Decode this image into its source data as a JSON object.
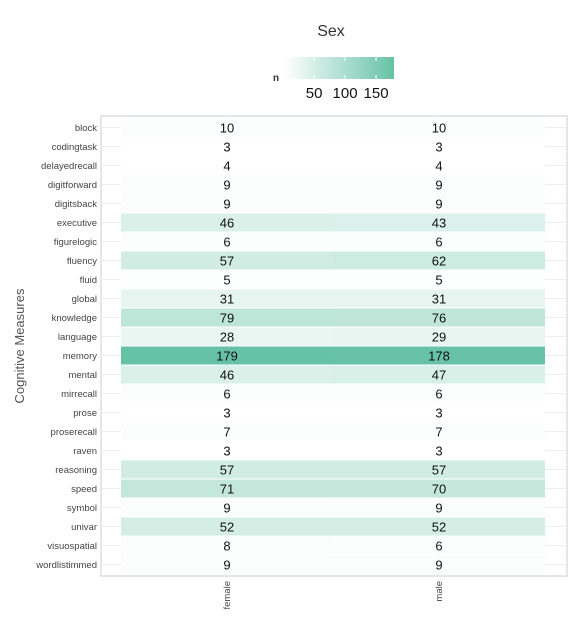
{
  "chart_data": {
    "type": "heatmap",
    "title": "Sex",
    "legend": {
      "title": "n",
      "ticks": [
        50,
        100,
        150
      ],
      "range": [
        3,
        179
      ],
      "low_color": "#ffffff",
      "high_color": "#66c2a5",
      "placement": "top"
    },
    "ylabel": "Cognitive Measures",
    "xlabel": "",
    "x": [
      "female",
      "male"
    ],
    "y": [
      "block",
      "codingtask",
      "delayedrecall",
      "digitforward",
      "digitsback",
      "executive",
      "figurelogic",
      "fluency",
      "fluid",
      "global",
      "knowledge",
      "language",
      "memory",
      "mental",
      "mirrecall",
      "prose",
      "proserecall",
      "raven",
      "reasoning",
      "speed",
      "symbol",
      "univar",
      "visuospatial",
      "wordlistimmed"
    ],
    "values": [
      [
        10,
        10
      ],
      [
        3,
        3
      ],
      [
        4,
        4
      ],
      [
        9,
        9
      ],
      [
        9,
        9
      ],
      [
        46,
        43
      ],
      [
        6,
        6
      ],
      [
        57,
        62
      ],
      [
        5,
        5
      ],
      [
        31,
        31
      ],
      [
        79,
        76
      ],
      [
        28,
        29
      ],
      [
        179,
        178
      ],
      [
        46,
        47
      ],
      [
        6,
        6
      ],
      [
        3,
        3
      ],
      [
        7,
        7
      ],
      [
        3,
        3
      ],
      [
        57,
        57
      ],
      [
        71,
        70
      ],
      [
        9,
        9
      ],
      [
        52,
        52
      ],
      [
        8,
        6
      ],
      [
        9,
        9
      ]
    ],
    "grid": true
  }
}
